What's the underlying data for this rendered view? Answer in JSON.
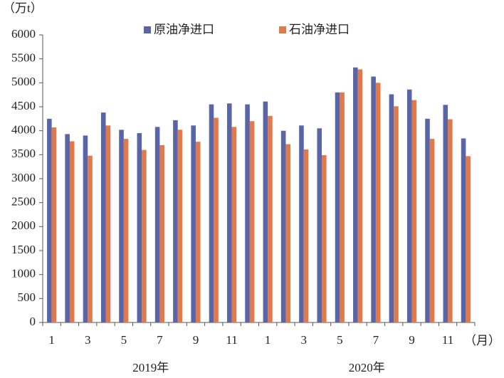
{
  "chart_data": {
    "type": "bar",
    "y_unit": "（万t）",
    "x_unit": "（月）",
    "categories": [
      "1",
      null,
      "3",
      null,
      "5",
      null,
      "7",
      null,
      "9",
      null,
      "11",
      null,
      "1",
      null,
      "3",
      null,
      "5",
      null,
      "7",
      null,
      "9",
      null,
      "11",
      null
    ],
    "x_groups": [
      "2019年",
      "2020年"
    ],
    "series": [
      {
        "name": "原油净进口",
        "color": "#5a65a8",
        "values": [
          4250,
          3930,
          3900,
          4380,
          4020,
          3950,
          4080,
          4220,
          4110,
          4550,
          4570,
          4550,
          4610,
          4000,
          4110,
          4050,
          4800,
          5320,
          5130,
          4760,
          4860,
          4250,
          4540,
          3840
        ]
      },
      {
        "name": "石油净进口",
        "color": "#e07a4c",
        "values": [
          4070,
          3780,
          3480,
          4110,
          3830,
          3600,
          3700,
          4020,
          3770,
          4270,
          4080,
          4200,
          4310,
          3720,
          3610,
          3490,
          4800,
          5280,
          5000,
          4510,
          4640,
          3830,
          4240,
          3470
        ]
      }
    ],
    "ylim": [
      0,
      6000
    ],
    "yticks": [
      0,
      500,
      1000,
      1500,
      2000,
      2500,
      3000,
      3500,
      4000,
      4500,
      5000,
      5500,
      6000
    ],
    "legend": "top",
    "grid": false
  }
}
